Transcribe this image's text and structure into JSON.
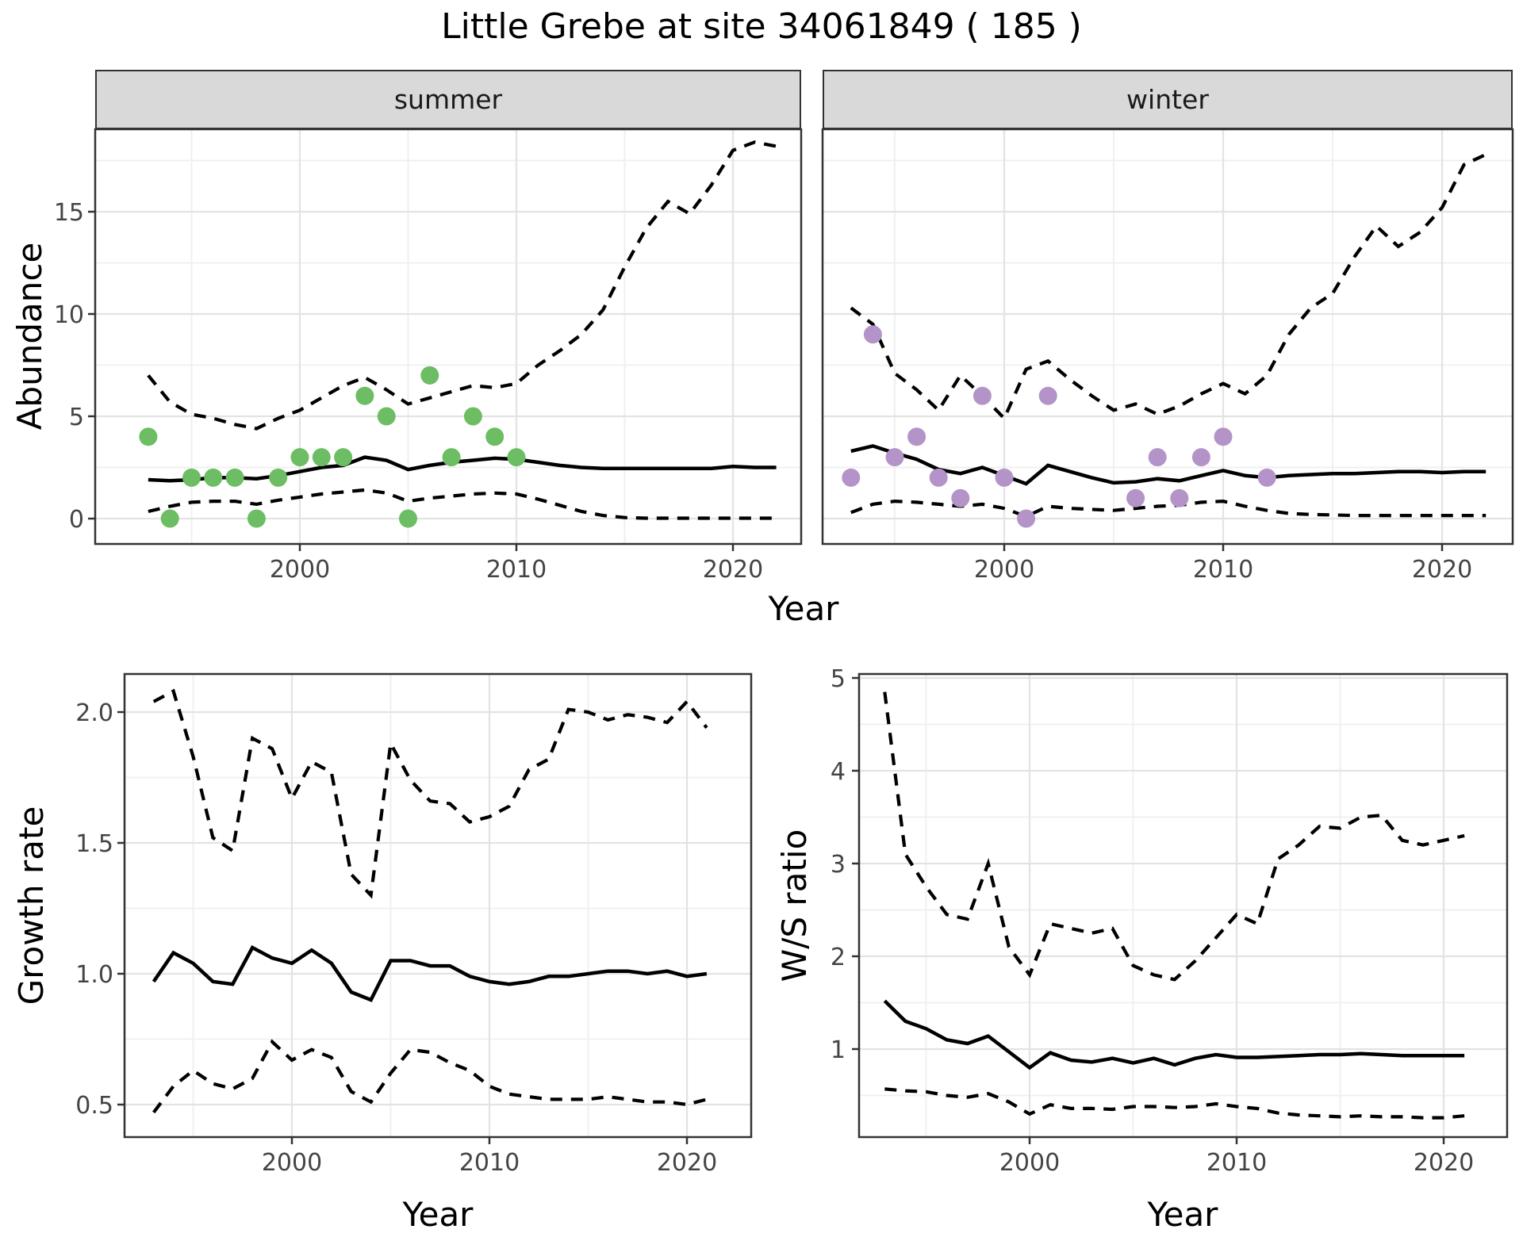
{
  "title": "Little Grebe at site 34061849 ( 185 )",
  "colors": {
    "summer_points": "#6cbd63",
    "winter_points": "#b494c8",
    "line": "#000000",
    "panel_border": "#333333",
    "strip_background": "#d9d9d9",
    "grid_major": "#e3e3e3",
    "grid_minor": "#efefef",
    "tick_text": "#444444"
  },
  "facets": {
    "summer_label": "summer",
    "winter_label": "winter"
  },
  "axis_titles": {
    "abundance": "Abundance",
    "year_top": "Year",
    "growth": "Growth rate",
    "ws": "W/S ratio",
    "year_growth": "Year",
    "year_ws": "Year"
  },
  "chart_data": [
    {
      "id": "abundance_summer",
      "type": "line",
      "facet": "summer",
      "xlabel": "Year",
      "ylabel": "Abundance",
      "xlim": [
        1990.6,
        2023.2
      ],
      "ylim": [
        -1.2,
        19.0
      ],
      "grid": true,
      "legend": "none",
      "x_ticks": [
        2000,
        2010,
        2020
      ],
      "x_tick_labels": [
        "2000",
        "2010",
        "2020"
      ],
      "x_minor_ticks": [
        1995,
        2005,
        2015
      ],
      "y_ticks": [
        0,
        5,
        10,
        15
      ],
      "y_tick_labels": [
        "0",
        "5",
        "10",
        "15"
      ],
      "y_minor_ticks": [
        2.5,
        7.5,
        12.5,
        17.5
      ],
      "x": [
        1993,
        1994,
        1995,
        1996,
        1997,
        1998,
        1999,
        2000,
        2001,
        2002,
        2003,
        2004,
        2005,
        2006,
        2007,
        2008,
        2009,
        2010,
        2011,
        2012,
        2013,
        2014,
        2015,
        2016,
        2017,
        2018,
        2019,
        2020,
        2021,
        2022
      ],
      "series": [
        {
          "name": "median",
          "style": "solid",
          "values": [
            1.9,
            1.85,
            1.9,
            2.0,
            2.0,
            1.95,
            2.1,
            2.3,
            2.5,
            2.6,
            3.0,
            2.85,
            2.4,
            2.6,
            2.75,
            2.85,
            2.95,
            2.9,
            2.75,
            2.6,
            2.5,
            2.45,
            2.45,
            2.45,
            2.45,
            2.45,
            2.45,
            2.55,
            2.5,
            2.5
          ]
        },
        {
          "name": "upper_ci",
          "style": "dashed",
          "values": [
            7.0,
            5.7,
            5.1,
            4.9,
            4.6,
            4.4,
            4.9,
            5.3,
            5.9,
            6.5,
            6.9,
            6.3,
            5.6,
            5.9,
            6.2,
            6.5,
            6.4,
            6.6,
            7.5,
            8.2,
            9.0,
            10.2,
            12.3,
            14.2,
            15.5,
            14.9,
            16.3,
            18.0,
            18.4,
            18.2
          ]
        },
        {
          "name": "lower_ci",
          "style": "dashed",
          "values": [
            0.35,
            0.6,
            0.8,
            0.85,
            0.85,
            0.7,
            0.9,
            1.05,
            1.2,
            1.3,
            1.4,
            1.25,
            0.85,
            1.0,
            1.1,
            1.2,
            1.25,
            1.2,
            0.95,
            0.65,
            0.35,
            0.15,
            0.05,
            0.02,
            0.02,
            0.02,
            0.02,
            0.02,
            0.02,
            0.02
          ]
        }
      ],
      "points": {
        "name": "observed_summer_counts",
        "x": [
          1993,
          1994,
          1995,
          1996,
          1997,
          1998,
          1999,
          2000,
          2001,
          2002,
          2003,
          2004,
          2005,
          2006,
          2007,
          2008,
          2009,
          2010
        ],
        "y": [
          4,
          0,
          2,
          2,
          2,
          0,
          2,
          3,
          3,
          3,
          6,
          5,
          0,
          7,
          3,
          5,
          4,
          3
        ]
      }
    },
    {
      "id": "abundance_winter",
      "type": "line",
      "facet": "winter",
      "xlabel": "Year",
      "ylabel": "Abundance",
      "xlim": [
        1991.7,
        2023.2
      ],
      "ylim": [
        -1.2,
        19.0
      ],
      "grid": true,
      "legend": "none",
      "x_ticks": [
        2000,
        2010,
        2020
      ],
      "x_tick_labels": [
        "2000",
        "2010",
        "2020"
      ],
      "x_minor_ticks": [
        1995,
        2005,
        2015
      ],
      "y_ticks": [
        0,
        5,
        10,
        15
      ],
      "y_tick_labels": [
        "0",
        "5",
        "10",
        "15"
      ],
      "y_minor_ticks": [
        2.5,
        7.5,
        12.5,
        17.5
      ],
      "x": [
        1993,
        1994,
        1995,
        1996,
        1997,
        1998,
        1999,
        2000,
        2001,
        2002,
        2003,
        2004,
        2005,
        2006,
        2007,
        2008,
        2009,
        2010,
        2011,
        2012,
        2013,
        2014,
        2015,
        2016,
        2017,
        2018,
        2019,
        2020,
        2021,
        2022
      ],
      "series": [
        {
          "name": "median",
          "style": "solid",
          "values": [
            3.3,
            3.55,
            3.2,
            2.9,
            2.4,
            2.2,
            2.5,
            2.1,
            1.7,
            2.6,
            2.3,
            2.0,
            1.75,
            1.8,
            1.95,
            1.85,
            2.1,
            2.35,
            2.1,
            2.0,
            2.1,
            2.15,
            2.2,
            2.2,
            2.25,
            2.3,
            2.3,
            2.25,
            2.3,
            2.3
          ]
        },
        {
          "name": "upper_ci",
          "style": "dashed",
          "values": [
            10.3,
            9.5,
            7.1,
            6.3,
            5.3,
            7.0,
            6.0,
            4.9,
            7.3,
            7.7,
            6.8,
            6.0,
            5.3,
            5.6,
            5.1,
            5.5,
            6.1,
            6.6,
            6.1,
            7.0,
            9.0,
            10.3,
            11.0,
            12.8,
            14.3,
            13.3,
            14.0,
            15.2,
            17.3,
            17.8
          ]
        },
        {
          "name": "lower_ci",
          "style": "dashed",
          "values": [
            0.3,
            0.7,
            0.85,
            0.8,
            0.7,
            0.6,
            0.7,
            0.5,
            0.1,
            0.6,
            0.5,
            0.45,
            0.4,
            0.5,
            0.6,
            0.65,
            0.8,
            0.85,
            0.6,
            0.4,
            0.25,
            0.2,
            0.18,
            0.15,
            0.15,
            0.15,
            0.15,
            0.15,
            0.15,
            0.15
          ]
        }
      ],
      "points": {
        "name": "observed_winter_counts",
        "x": [
          1993,
          1994,
          1995,
          1996,
          1997,
          1998,
          1999,
          2000,
          2001,
          2002,
          2006,
          2007,
          2008,
          2009,
          2010,
          2012
        ],
        "y": [
          2,
          9,
          3,
          4,
          2,
          1,
          6,
          2,
          0,
          6,
          1,
          3,
          1,
          3,
          4,
          2
        ]
      }
    },
    {
      "id": "growth_rate",
      "type": "line",
      "facet": null,
      "xlabel": "Year",
      "ylabel": "Growth rate",
      "xlim": [
        1991.5,
        2023.3
      ],
      "ylim": [
        0.38,
        2.15
      ],
      "grid": true,
      "legend": "none",
      "x_ticks": [
        2000,
        2010,
        2020
      ],
      "x_tick_labels": [
        "2000",
        "2010",
        "2020"
      ],
      "x_minor_ticks": [
        1995,
        2005,
        2015
      ],
      "y_ticks": [
        0.5,
        1.0,
        1.5,
        2.0
      ],
      "y_tick_labels": [
        "0.5",
        "1.0",
        "1.5",
        "2.0"
      ],
      "y_minor_ticks": [
        0.75,
        1.25,
        1.75
      ],
      "x": [
        1993,
        1994,
        1995,
        1996,
        1997,
        1998,
        1999,
        2000,
        2001,
        2002,
        2003,
        2004,
        2005,
        2006,
        2007,
        2008,
        2009,
        2010,
        2011,
        2012,
        2013,
        2014,
        2015,
        2016,
        2017,
        2018,
        2019,
        2020,
        2021
      ],
      "series": [
        {
          "name": "median",
          "style": "solid",
          "values": [
            0.97,
            1.08,
            1.04,
            0.97,
            0.96,
            1.1,
            1.06,
            1.04,
            1.09,
            1.04,
            0.93,
            0.9,
            1.05,
            1.05,
            1.03,
            1.03,
            0.99,
            0.97,
            0.96,
            0.97,
            0.99,
            0.99,
            1.0,
            1.01,
            1.01,
            1.0,
            1.01,
            0.99,
            1.0
          ]
        },
        {
          "name": "upper_ci",
          "style": "dashed",
          "values": [
            2.04,
            2.08,
            1.83,
            1.52,
            1.47,
            1.9,
            1.86,
            1.67,
            1.81,
            1.77,
            1.38,
            1.3,
            1.88,
            1.74,
            1.66,
            1.65,
            1.58,
            1.6,
            1.64,
            1.78,
            1.82,
            2.01,
            2.0,
            1.97,
            1.99,
            1.98,
            1.96,
            2.04,
            1.94
          ]
        },
        {
          "name": "lower_ci",
          "style": "dashed",
          "values": [
            0.47,
            0.57,
            0.63,
            0.58,
            0.56,
            0.6,
            0.74,
            0.67,
            0.71,
            0.68,
            0.55,
            0.51,
            0.62,
            0.71,
            0.7,
            0.66,
            0.63,
            0.57,
            0.54,
            0.53,
            0.52,
            0.52,
            0.52,
            0.53,
            0.52,
            0.51,
            0.51,
            0.5,
            0.52
          ]
        }
      ],
      "points": null
    },
    {
      "id": "ws_ratio",
      "type": "line",
      "facet": null,
      "xlabel": "Year",
      "ylabel": "W/S ratio",
      "xlim": [
        1991.8,
        2023.1
      ],
      "ylim": [
        0.08,
        5.04
      ],
      "grid": true,
      "legend": "none",
      "x_ticks": [
        2000,
        2010,
        2020
      ],
      "x_tick_labels": [
        "2000",
        "2010",
        "2020"
      ],
      "x_minor_ticks": [
        1995,
        2005,
        2015
      ],
      "y_ticks": [
        1,
        2,
        3,
        4,
        5
      ],
      "y_tick_labels": [
        "1",
        "2",
        "3",
        "4",
        "5"
      ],
      "y_minor_ticks": [
        0.5,
        1.5,
        2.5,
        3.5,
        4.5
      ],
      "x": [
        1993,
        1994,
        1995,
        1996,
        1997,
        1998,
        1999,
        2000,
        2001,
        2002,
        2003,
        2004,
        2005,
        2006,
        2007,
        2008,
        2009,
        2010,
        2011,
        2012,
        2013,
        2014,
        2015,
        2016,
        2017,
        2018,
        2019,
        2020,
        2021
      ],
      "series": [
        {
          "name": "median",
          "style": "solid",
          "values": [
            1.52,
            1.3,
            1.22,
            1.1,
            1.06,
            1.14,
            0.97,
            0.8,
            0.96,
            0.88,
            0.86,
            0.9,
            0.85,
            0.9,
            0.83,
            0.9,
            0.94,
            0.91,
            0.91,
            0.92,
            0.93,
            0.94,
            0.94,
            0.95,
            0.94,
            0.93,
            0.93,
            0.93,
            0.93
          ]
        },
        {
          "name": "upper_ci",
          "style": "dashed",
          "values": [
            4.85,
            3.1,
            2.75,
            2.45,
            2.4,
            3.0,
            2.1,
            1.8,
            2.35,
            2.3,
            2.25,
            2.3,
            1.9,
            1.8,
            1.75,
            1.95,
            2.2,
            2.45,
            2.35,
            3.05,
            3.2,
            3.4,
            3.38,
            3.5,
            3.52,
            3.25,
            3.2,
            3.25,
            3.3
          ]
        },
        {
          "name": "lower_ci",
          "style": "dashed",
          "values": [
            0.57,
            0.55,
            0.54,
            0.5,
            0.48,
            0.52,
            0.43,
            0.3,
            0.4,
            0.36,
            0.36,
            0.35,
            0.38,
            0.38,
            0.37,
            0.38,
            0.41,
            0.38,
            0.36,
            0.31,
            0.29,
            0.28,
            0.27,
            0.28,
            0.27,
            0.27,
            0.26,
            0.26,
            0.28
          ]
        }
      ],
      "points": null
    }
  ]
}
